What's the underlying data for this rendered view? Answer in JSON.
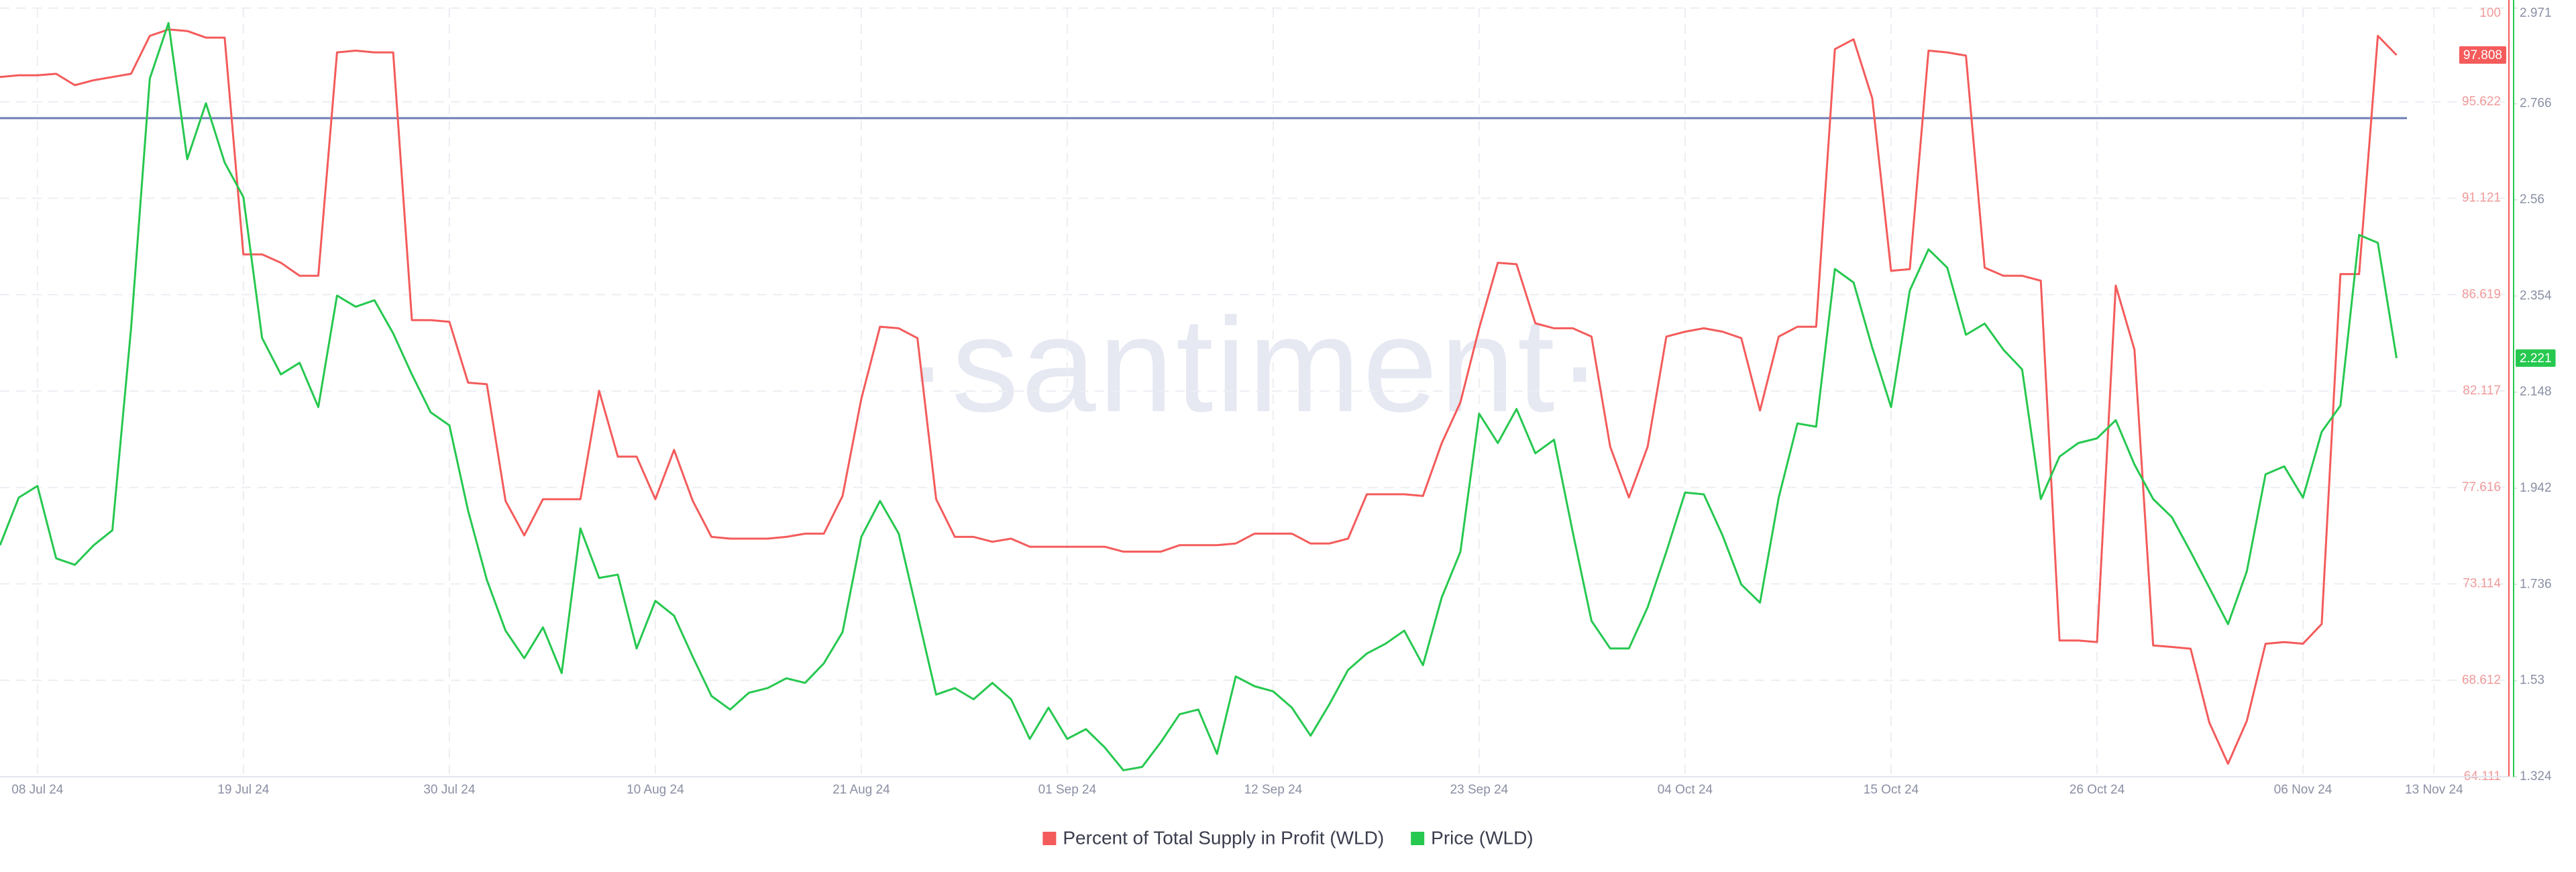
{
  "chart_data": {
    "type": "line",
    "watermark": "·santiment·",
    "x": [
      "06 Jul 24",
      "07 Jul 24",
      "08 Jul 24",
      "09 Jul 24",
      "10 Jul 24",
      "11 Jul 24",
      "12 Jul 24",
      "13 Jul 24",
      "14 Jul 24",
      "15 Jul 24",
      "16 Jul 24",
      "17 Jul 24",
      "18 Jul 24",
      "19 Jul 24",
      "20 Jul 24",
      "21 Jul 24",
      "22 Jul 24",
      "23 Jul 24",
      "24 Jul 24",
      "25 Jul 24",
      "26 Jul 24",
      "27 Jul 24",
      "28 Jul 24",
      "29 Jul 24",
      "30 Jul 24",
      "31 Jul 24",
      "01 Aug 24",
      "02 Aug 24",
      "03 Aug 24",
      "04 Aug 24",
      "05 Aug 24",
      "06 Aug 24",
      "07 Aug 24",
      "08 Aug 24",
      "09 Aug 24",
      "10 Aug 24",
      "11 Aug 24",
      "12 Aug 24",
      "13 Aug 24",
      "14 Aug 24",
      "15 Aug 24",
      "16 Aug 24",
      "17 Aug 24",
      "18 Aug 24",
      "19 Aug 24",
      "20 Aug 24",
      "21 Aug 24",
      "22 Aug 24",
      "23 Aug 24",
      "24 Aug 24",
      "25 Aug 24",
      "26 Aug 24",
      "27 Aug 24",
      "28 Aug 24",
      "29 Aug 24",
      "30 Aug 24",
      "31 Aug 24",
      "01 Sep 24",
      "02 Sep 24",
      "03 Sep 24",
      "04 Sep 24",
      "05 Sep 24",
      "06 Sep 24",
      "07 Sep 24",
      "08 Sep 24",
      "09 Sep 24",
      "10 Sep 24",
      "11 Sep 24",
      "12 Sep 24",
      "13 Sep 24",
      "14 Sep 24",
      "15 Sep 24",
      "16 Sep 24",
      "17 Sep 24",
      "18 Sep 24",
      "19 Sep 24",
      "20 Sep 24",
      "21 Sep 24",
      "22 Sep 24",
      "23 Sep 24",
      "24 Sep 24",
      "25 Sep 24",
      "26 Sep 24",
      "27 Sep 24",
      "28 Sep 24",
      "29 Sep 24",
      "30 Sep 24",
      "01 Oct 24",
      "02 Oct 24",
      "03 Oct 24",
      "04 Oct 24",
      "05 Oct 24",
      "06 Oct 24",
      "07 Oct 24",
      "08 Oct 24",
      "09 Oct 24",
      "10 Oct 24",
      "11 Oct 24",
      "12 Oct 24",
      "13 Oct 24",
      "14 Oct 24",
      "15 Oct 24",
      "16 Oct 24",
      "17 Oct 24",
      "18 Oct 24",
      "19 Oct 24",
      "20 Oct 24",
      "21 Oct 24",
      "22 Oct 24",
      "23 Oct 24",
      "24 Oct 24",
      "25 Oct 24",
      "26 Oct 24",
      "27 Oct 24",
      "28 Oct 24",
      "29 Oct 24",
      "30 Oct 24",
      "31 Oct 24",
      "01 Nov 24",
      "02 Nov 24",
      "03 Nov 24",
      "04 Nov 24",
      "05 Nov 24",
      "06 Nov 24",
      "07 Nov 24",
      "08 Nov 24",
      "09 Nov 24",
      "10 Nov 24",
      "11 Nov 24"
    ],
    "xlim": [
      "06 Jul 24",
      "17 Nov 24"
    ],
    "xticks": [
      "08 Jul 24",
      "19 Jul 24",
      "30 Jul 24",
      "10 Aug 24",
      "21 Aug 24",
      "01 Sep 24",
      "12 Sep 24",
      "23 Sep 24",
      "04 Oct 24",
      "15 Oct 24",
      "26 Oct 24",
      "06 Nov 24",
      "13 Nov 24"
    ],
    "ylim": [
      64.111,
      100
    ],
    "yticks": [
      64.111,
      68.612,
      73.114,
      77.616,
      82.117,
      86.619,
      91.121,
      95.622,
      100
    ],
    "y2lim": [
      1.324,
      2.971
    ],
    "y2ticks": [
      1.324,
      1.53,
      1.736,
      1.942,
      2.148,
      2.354,
      2.56,
      2.766,
      2.971
    ],
    "grid": true,
    "hline": 94.86,
    "hline_color": "#6f7cb6",
    "legend": "bottom",
    "series": [
      {
        "name": "Percent of Total Supply in Profit (WLD)",
        "color": "#f45b5b",
        "axis": "y",
        "values": [
          96.78,
          96.86,
          96.86,
          96.93,
          96.4,
          96.63,
          96.78,
          96.93,
          98.7,
          99.0,
          98.93,
          98.62,
          98.62,
          88.5,
          88.5,
          88.11,
          87.5,
          87.5,
          97.93,
          98.01,
          97.93,
          97.93,
          85.43,
          85.43,
          85.35,
          82.51,
          82.44,
          76.99,
          75.38,
          77.07,
          77.07,
          77.07,
          82.13,
          79.06,
          79.06,
          77.07,
          79.37,
          76.99,
          75.31,
          75.23,
          75.23,
          75.23,
          75.31,
          75.46,
          75.46,
          77.22,
          81.75,
          85.12,
          85.05,
          84.59,
          77.07,
          75.31,
          75.31,
          75.08,
          75.23,
          74.85,
          74.85,
          74.85,
          74.85,
          74.85,
          74.62,
          74.62,
          74.62,
          74.92,
          74.92,
          74.92,
          75.0,
          75.46,
          75.46,
          75.46,
          75.0,
          75.0,
          75.23,
          77.3,
          77.3,
          77.3,
          77.22,
          79.68,
          81.59,
          85.05,
          88.11,
          88.04,
          85.28,
          85.05,
          85.05,
          84.66,
          79.52,
          77.15,
          79.52,
          84.66,
          84.89,
          85.05,
          84.89,
          84.59,
          81.21,
          84.66,
          85.12,
          85.12,
          98.08,
          98.54,
          95.78,
          87.73,
          87.81,
          98.01,
          97.93,
          97.78,
          87.88,
          87.5,
          87.5,
          87.27,
          70.47,
          70.47,
          70.4,
          87.04,
          84.05,
          70.24,
          70.17,
          70.09,
          66.64,
          64.72,
          66.72,
          70.32,
          70.4,
          70.32,
          71.24,
          87.58,
          87.58,
          98.7,
          97.808
        ]
      },
      {
        "name": "Price (WLD)",
        "color": "#26c84f",
        "axis": "y2",
        "values": [
          1.82,
          1.922,
          1.947,
          1.792,
          1.778,
          1.82,
          1.852,
          2.285,
          2.82,
          2.939,
          2.647,
          2.767,
          2.64,
          2.566,
          2.264,
          2.186,
          2.211,
          2.116,
          2.355,
          2.331,
          2.345,
          2.274,
          2.186,
          2.105,
          2.077,
          1.894,
          1.746,
          1.637,
          1.578,
          1.644,
          1.546,
          1.856,
          1.75,
          1.757,
          1.599,
          1.701,
          1.669,
          1.581,
          1.497,
          1.468,
          1.504,
          1.514,
          1.535,
          1.525,
          1.567,
          1.634,
          1.838,
          1.915,
          1.845,
          1.673,
          1.5,
          1.514,
          1.49,
          1.525,
          1.49,
          1.405,
          1.472,
          1.405,
          1.426,
          1.387,
          1.338,
          1.345,
          1.398,
          1.458,
          1.468,
          1.373,
          1.539,
          1.518,
          1.507,
          1.472,
          1.412,
          1.479,
          1.553,
          1.588,
          1.609,
          1.637,
          1.563,
          1.708,
          1.806,
          2.102,
          2.039,
          2.112,
          2.017,
          2.046,
          1.848,
          1.658,
          1.599,
          1.599,
          1.687,
          1.806,
          1.933,
          1.929,
          1.841,
          1.736,
          1.697,
          1.922,
          2.081,
          2.074,
          2.412,
          2.383,
          2.243,
          2.116,
          2.366,
          2.454,
          2.415,
          2.271,
          2.295,
          2.239,
          2.197,
          1.919,
          2.01,
          2.039,
          2.049,
          2.088,
          1.993,
          1.919,
          1.88,
          1.806,
          1.729,
          1.651,
          1.764,
          1.972,
          1.989,
          1.922,
          2.063,
          2.119,
          2.485,
          2.468,
          2.221
        ]
      }
    ]
  }
}
